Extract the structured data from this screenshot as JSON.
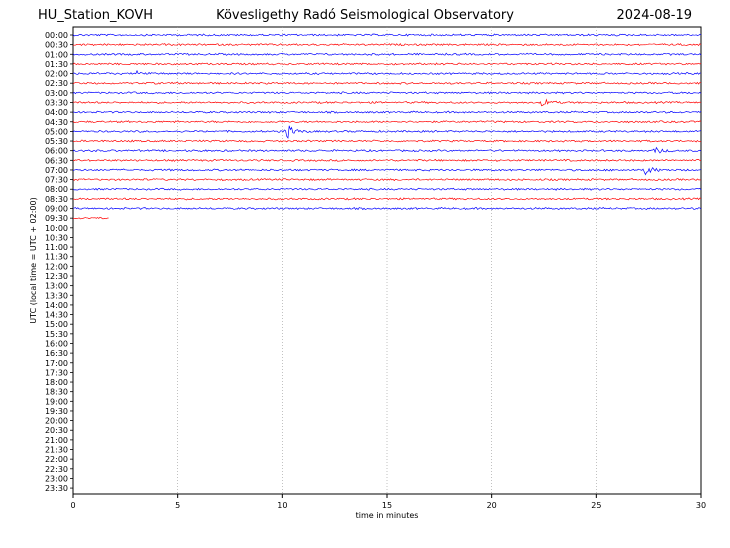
{
  "header": {
    "station": "HU_Station_KOVH",
    "title": "Kövesligethy Radó Seismological Observatory",
    "date": "2024-08-19"
  },
  "chart_data": {
    "type": "line",
    "title": "Kövesligethy Radó Seismological Observatory",
    "xlabel": "time in minutes",
    "ylabel": "UTC (local time = UTC + 02:00)",
    "xlim": [
      0,
      30
    ],
    "xticks": [
      "0",
      "5",
      "10",
      "15",
      "20",
      "25",
      "30"
    ],
    "xtick_values": [
      0,
      5,
      10,
      15,
      20,
      25,
      30
    ],
    "grid": "vertical dotted at x ticks",
    "row_labels": [
      "00:00",
      "00:30",
      "01:00",
      "01:30",
      "02:00",
      "02:30",
      "03:00",
      "03:30",
      "04:00",
      "04:30",
      "05:00",
      "05:30",
      "06:00",
      "06:30",
      "07:00",
      "07:30",
      "08:00",
      "08:30",
      "09:00",
      "09:30",
      "10:00",
      "10:30",
      "11:00",
      "11:30",
      "12:00",
      "12:30",
      "13:00",
      "13:30",
      "14:00",
      "14:30",
      "15:00",
      "15:30",
      "16:00",
      "16:30",
      "17:00",
      "17:30",
      "18:00",
      "18:30",
      "19:00",
      "19:30",
      "20:00",
      "20:30",
      "21:00",
      "21:30",
      "22:00",
      "22:30",
      "23:00",
      "23:30"
    ],
    "trace_colors": [
      "#0000ff",
      "#ff0000"
    ],
    "traces_recorded": 20,
    "last_trace_end_minutes": 1.7,
    "events": [
      {
        "row": "02:00",
        "minute": 3.2,
        "amplitude": 2.0
      },
      {
        "row": "03:30",
        "minute": 22.5,
        "amplitude": 3.0
      },
      {
        "row": "05:00",
        "minute": 10.2,
        "amplitude": 7.0
      },
      {
        "row": "06:00",
        "minute": 27.9,
        "amplitude": 2.5
      },
      {
        "row": "07:00",
        "minute": 27.4,
        "amplitude": 4.5
      }
    ]
  }
}
